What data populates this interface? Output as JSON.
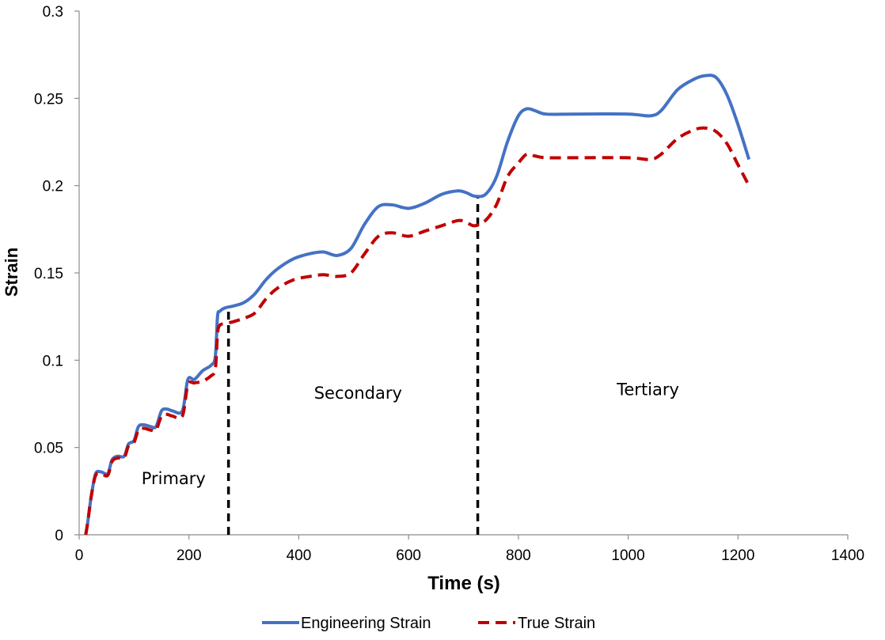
{
  "chart_data": {
    "type": "line",
    "title": "",
    "xlabel": "Time (s)",
    "ylabel": "Strain",
    "xlim": [
      0,
      1400
    ],
    "ylim": [
      0,
      0.3
    ],
    "xticks": [
      0,
      200,
      400,
      600,
      800,
      1000,
      1200,
      1400
    ],
    "yticks": [
      0,
      0.05,
      0.1,
      0.15,
      0.2,
      0.25,
      0.3
    ],
    "xtick_labels": [
      "0",
      "200",
      "400",
      "600",
      "800",
      "1000",
      "1200",
      "1400"
    ],
    "ytick_labels": [
      "0",
      "0.05",
      "0.1",
      "0.15",
      "0.2",
      "0.25",
      "0.3"
    ],
    "grid": false,
    "legend_position": "bottom-center",
    "series": [
      {
        "name": "Engineering Strain",
        "color": "#4472C4",
        "style": "solid",
        "x": [
          12,
          16,
          22,
          30,
          40,
          52,
          60,
          70,
          82,
          90,
          100,
          108,
          118,
          130,
          140,
          150,
          160,
          170,
          188,
          198,
          210,
          225,
          240,
          248,
          252,
          256,
          266,
          280,
          300,
          320,
          340,
          360,
          390,
          420,
          445,
          470,
          495,
          520,
          545,
          570,
          600,
          630,
          660,
          690,
          705,
          720,
          740,
          760,
          780,
          800,
          815,
          830,
          850,
          900,
          1000,
          1040,
          1060,
          1090,
          1120,
          1140,
          1160,
          1180,
          1200,
          1220
        ],
        "values": [
          0.0,
          0.008,
          0.022,
          0.035,
          0.036,
          0.035,
          0.043,
          0.045,
          0.045,
          0.052,
          0.054,
          0.062,
          0.063,
          0.062,
          0.062,
          0.071,
          0.072,
          0.071,
          0.071,
          0.089,
          0.089,
          0.094,
          0.097,
          0.102,
          0.125,
          0.128,
          0.13,
          0.131,
          0.133,
          0.138,
          0.146,
          0.152,
          0.158,
          0.161,
          0.162,
          0.16,
          0.164,
          0.178,
          0.188,
          0.189,
          0.187,
          0.19,
          0.195,
          0.197,
          0.196,
          0.194,
          0.195,
          0.205,
          0.225,
          0.24,
          0.244,
          0.243,
          0.241,
          0.241,
          0.241,
          0.24,
          0.243,
          0.255,
          0.261,
          0.263,
          0.262,
          0.252,
          0.235,
          0.215
        ]
      },
      {
        "name": "True Strain",
        "color": "#C00000",
        "style": "dashed",
        "x": [
          12,
          16,
          22,
          30,
          40,
          52,
          60,
          70,
          82,
          90,
          100,
          108,
          118,
          130,
          140,
          150,
          160,
          170,
          188,
          198,
          210,
          225,
          240,
          248,
          252,
          256,
          266,
          280,
          300,
          320,
          340,
          360,
          390,
          420,
          445,
          470,
          495,
          520,
          545,
          570,
          600,
          630,
          660,
          690,
          705,
          720,
          740,
          760,
          780,
          800,
          815,
          830,
          850,
          900,
          1000,
          1040,
          1060,
          1090,
          1120,
          1140,
          1160,
          1180,
          1200,
          1220
        ],
        "values": [
          0.0,
          0.008,
          0.022,
          0.034,
          0.035,
          0.034,
          0.042,
          0.044,
          0.044,
          0.051,
          0.053,
          0.06,
          0.061,
          0.06,
          0.06,
          0.068,
          0.069,
          0.068,
          0.068,
          0.086,
          0.087,
          0.088,
          0.091,
          0.095,
          0.115,
          0.12,
          0.121,
          0.122,
          0.124,
          0.127,
          0.135,
          0.141,
          0.146,
          0.148,
          0.149,
          0.148,
          0.15,
          0.161,
          0.171,
          0.173,
          0.171,
          0.174,
          0.177,
          0.18,
          0.179,
          0.177,
          0.18,
          0.189,
          0.205,
          0.213,
          0.218,
          0.217,
          0.216,
          0.216,
          0.216,
          0.215,
          0.218,
          0.227,
          0.232,
          0.233,
          0.231,
          0.224,
          0.212,
          0.2
        ]
      }
    ],
    "dividers": [
      {
        "x": 272,
        "from": 0,
        "to": 0.128
      },
      {
        "x": 726,
        "from": 0,
        "to": 0.194
      }
    ],
    "annotations": [
      {
        "text": "Primary",
        "x": 172,
        "y": 0.029
      },
      {
        "text": "Secondary",
        "x": 508,
        "y": 0.078
      },
      {
        "text": "Tertiary",
        "x": 1036,
        "y": 0.08
      }
    ]
  }
}
